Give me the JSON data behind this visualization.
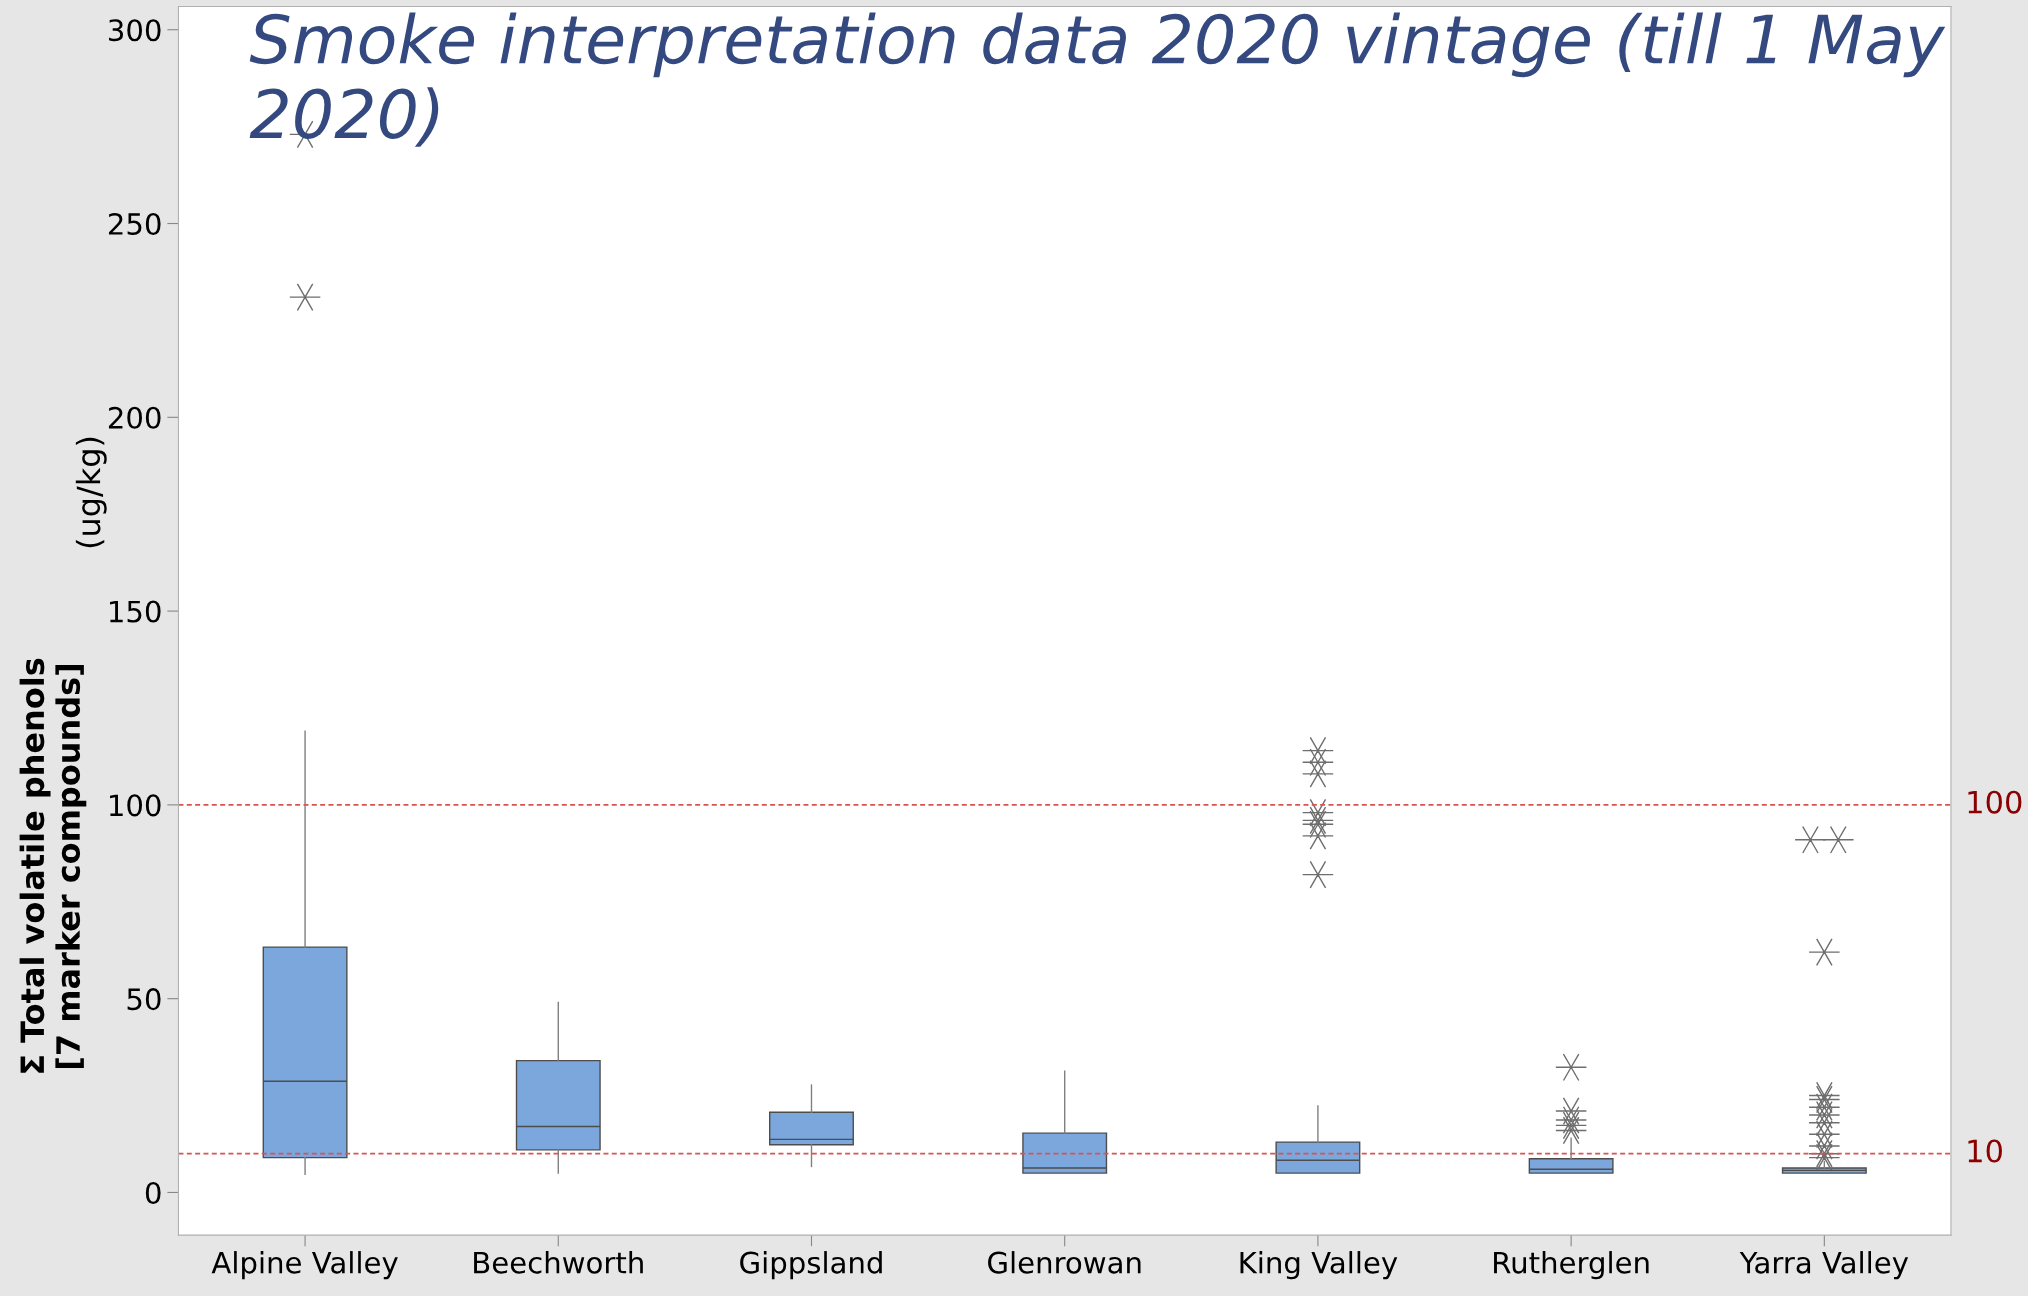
{
  "chart_data": {
    "type": "box",
    "title": "Smoke interpretation data 2020 vintage (till 1 May 2020)",
    "ylabel": "Σ Total volatile phenols\n[7 marker compounds]",
    "annotations": [
      "(ug/kg)"
    ],
    "categories": [
      "Alpine Valley",
      "Beechworth",
      "Gippsland",
      "Glenrowan",
      "King Valley",
      "Rutherglen",
      "Yarra Valley"
    ],
    "color": "#7ba7dc",
    "boxes": [
      {
        "low": 4.7,
        "q1": 9,
        "median": 28.7,
        "q3": 63.3,
        "high": 119,
        "outliers": [
          231,
          273
        ]
      },
      {
        "low": 5,
        "q1": 11,
        "median": 17,
        "q3": 34,
        "high": 49
      },
      {
        "low": 6.7,
        "q1": 12.3,
        "median": 13.7,
        "q3": 20.7,
        "high": 27.7
      },
      {
        "low": 5,
        "q1": 5,
        "median": 6.3,
        "q3": 15.3,
        "high": 31.3
      },
      {
        "low": 5,
        "q1": 5,
        "median": 8.3,
        "q3": 13,
        "high": 22.3,
        "outliers": [
          114,
          111,
          108,
          98,
          96,
          95,
          92,
          82
        ]
      },
      {
        "low": 5,
        "q1": 5,
        "median": 6,
        "q3": 8.7,
        "high": 14,
        "outliers": [
          32.3,
          21,
          18.7,
          17.3,
          16
        ]
      },
      {
        "low": 5,
        "q1": 5,
        "median": 5.7,
        "q3": 6.3,
        "high": 8,
        "outliers": [
          91,
          91,
          62,
          25,
          24,
          22,
          20,
          18,
          15,
          12,
          10,
          9
        ]
      }
    ],
    "ylim": [
      -11,
      306
    ],
    "yticks": [
      0,
      50,
      100,
      150,
      200,
      250,
      300
    ],
    "ref_lines": [
      {
        "axis": "y",
        "value": 100,
        "label": "100",
        "color": "#d9534f",
        "line_style": "dashed"
      },
      {
        "axis": "y",
        "value": 10,
        "label": "10",
        "color": "#d9534f",
        "line_style": "dashed"
      }
    ],
    "grid": false
  }
}
